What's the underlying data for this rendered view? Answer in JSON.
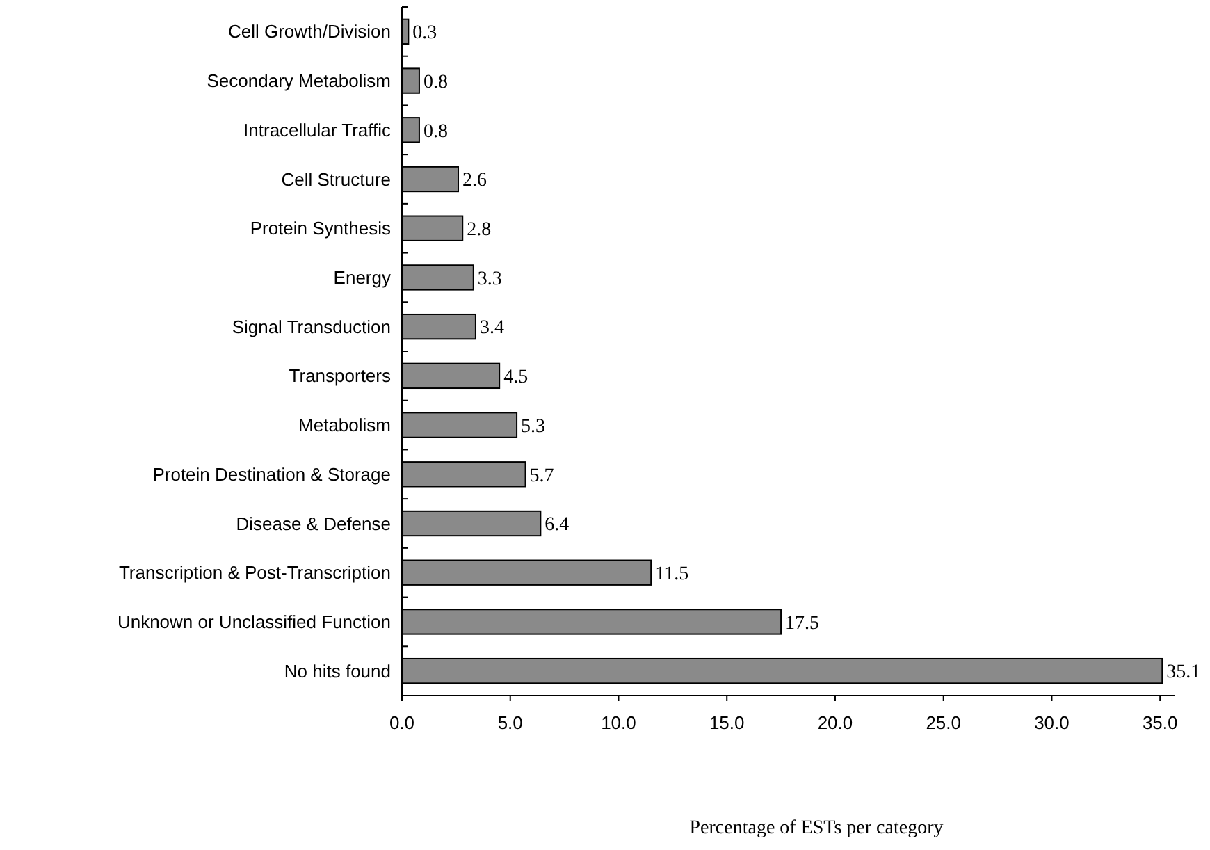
{
  "chart_data": {
    "type": "bar",
    "orientation": "horizontal",
    "xlabel": "Percentage of ESTs per category",
    "categories": [
      "Cell Growth/Division",
      "Secondary Metabolism",
      "Intracellular Traffic",
      "Cell Structure",
      "Protein Synthesis",
      "Energy",
      "Signal Transduction",
      "Transporters",
      "Metabolism",
      "Protein Destination & Storage",
      "Disease & Defense",
      "Transcription & Post-Transcription",
      "Unknown or Unclassified Function",
      "No hits found"
    ],
    "values": [
      0.3,
      0.8,
      0.8,
      2.6,
      2.8,
      3.3,
      3.4,
      4.5,
      5.3,
      5.7,
      6.4,
      11.5,
      17.5,
      35.1
    ],
    "color": "#8a8a8a",
    "data_labels": true,
    "xlim": [
      0,
      35.7
    ],
    "xticks": [
      {
        "value": 0,
        "label": "0.0"
      },
      {
        "value": 5,
        "label": "5.0"
      },
      {
        "value": 10,
        "label": "10.0"
      },
      {
        "value": 15,
        "label": "15.0"
      },
      {
        "value": 20,
        "label": "20.0"
      },
      {
        "value": 25,
        "label": "25.0"
      },
      {
        "value": 30,
        "label": "30.0"
      },
      {
        "value": 35,
        "label": "35.0"
      }
    ],
    "grid": false
  }
}
